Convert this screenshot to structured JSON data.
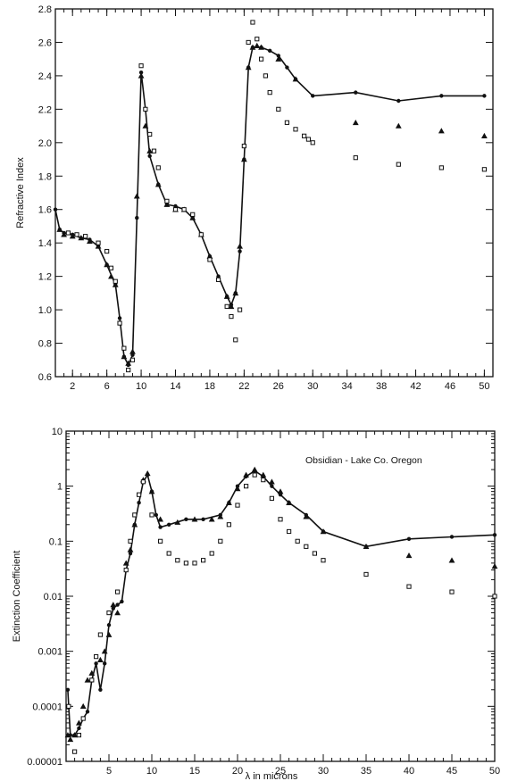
{
  "chart_data": [
    {
      "type": "line",
      "ylabel": "Refractive Index",
      "xlabel": "",
      "x_ticks": [
        2,
        6,
        10,
        14,
        18,
        22,
        26,
        30,
        34,
        38,
        42,
        46,
        50
      ],
      "y_ticks": [
        "0.6",
        "0.8",
        "1.0",
        "1.2",
        "1.4",
        "1.6",
        "1.8",
        "2.0",
        "2.2",
        "2.4",
        "2.6",
        "2.8"
      ],
      "xlim": [
        0,
        51
      ],
      "ylim": [
        0.6,
        2.8
      ],
      "grid": false,
      "series": [
        {
          "marker": "circle",
          "line": true,
          "x": [
            0,
            0.5,
            1,
            2,
            3,
            4,
            5,
            6,
            7,
            7.5,
            8,
            8.5,
            9,
            9.5,
            10,
            10.5,
            11,
            12,
            13,
            14,
            15,
            16,
            17,
            18,
            19,
            20,
            20.5,
            21,
            21.5,
            22,
            22.5,
            23,
            24,
            25,
            26,
            27,
            28,
            30,
            35,
            40,
            45,
            50
          ],
          "y": [
            1.6,
            1.48,
            1.46,
            1.45,
            1.43,
            1.42,
            1.38,
            1.27,
            1.15,
            0.95,
            0.72,
            0.67,
            0.73,
            1.55,
            2.42,
            2.2,
            1.92,
            1.75,
            1.63,
            1.62,
            1.6,
            1.55,
            1.45,
            1.32,
            1.2,
            1.08,
            1.03,
            1.1,
            1.35,
            1.9,
            2.45,
            2.57,
            2.57,
            2.55,
            2.52,
            2.45,
            2.38,
            2.28,
            2.3,
            2.25,
            2.28,
            2.28
          ]
        },
        {
          "marker": "triangle",
          "line": false,
          "x": [
            0.5,
            1,
            2,
            3,
            4,
            5,
            6,
            6.5,
            7,
            8,
            8.5,
            9,
            9.5,
            10,
            10.5,
            11,
            12,
            13,
            14,
            15,
            16,
            17,
            18,
            20,
            20.5,
            21,
            21.5,
            22,
            22.5,
            23,
            23.5,
            24,
            26,
            28,
            35,
            40,
            45,
            50
          ],
          "y": [
            1.48,
            1.45,
            1.44,
            1.43,
            1.41,
            1.38,
            1.27,
            1.2,
            1.15,
            0.72,
            0.68,
            0.75,
            1.68,
            2.4,
            2.1,
            1.95,
            1.75,
            1.63,
            1.6,
            1.6,
            1.55,
            1.45,
            1.32,
            1.08,
            1.02,
            1.1,
            1.38,
            1.9,
            2.45,
            2.57,
            2.58,
            2.57,
            2.5,
            2.38,
            2.12,
            2.1,
            2.07,
            2.04
          ]
        },
        {
          "marker": "square",
          "line": false,
          "x": [
            1.5,
            2.5,
            3.5,
            5,
            6,
            6.5,
            7,
            7.5,
            8,
            8.5,
            9,
            10,
            10.5,
            11,
            11.5,
            12,
            13,
            14,
            15,
            16,
            17,
            18,
            19,
            20,
            20.5,
            21,
            21.5,
            22,
            22.5,
            23,
            23.5,
            24,
            24.5,
            25,
            26,
            27,
            28,
            29,
            29.5,
            30,
            35,
            40,
            45,
            50
          ],
          "y": [
            1.46,
            1.45,
            1.44,
            1.4,
            1.35,
            1.25,
            1.17,
            0.92,
            0.77,
            0.64,
            0.7,
            2.46,
            2.2,
            2.05,
            1.95,
            1.85,
            1.65,
            1.6,
            1.6,
            1.57,
            1.45,
            1.3,
            1.18,
            1.02,
            0.96,
            0.82,
            1.0,
            1.98,
            2.6,
            2.72,
            2.62,
            2.5,
            2.4,
            2.3,
            2.2,
            2.12,
            2.08,
            2.04,
            2.02,
            2.0,
            1.91,
            1.87,
            1.85,
            1.84
          ]
        }
      ]
    },
    {
      "type": "line",
      "ylabel": "Extinction Coefficient",
      "xlabel": "λ in microns",
      "annotation": "Obsidian - Lake Co. Oregon",
      "y_scale": "log",
      "x_ticks": [
        "5",
        "10",
        "15",
        "20",
        "25",
        "30",
        "35",
        "40",
        "45",
        "50"
      ],
      "y_ticks": [
        "0.00001",
        "0.0001",
        "0.001",
        "0.01",
        "0.1",
        "1",
        "10"
      ],
      "xlim": [
        0,
        50
      ],
      "ylim": [
        1e-05,
        10
      ],
      "grid": false,
      "series": [
        {
          "marker": "circle",
          "line": true,
          "x": [
            0.2,
            0.5,
            1,
            1.5,
            2,
            2.5,
            3,
            3.5,
            4,
            4.5,
            5,
            5.5,
            6,
            6.5,
            7,
            7.5,
            8,
            8.5,
            9,
            9.5,
            10,
            10.5,
            11,
            12,
            14,
            16,
            18,
            19,
            20,
            21,
            22,
            23,
            24,
            25,
            26,
            28,
            30,
            35,
            40,
            45,
            50
          ],
          "y": [
            0.0002,
            3e-05,
            3e-05,
            4e-05,
            6e-05,
            8e-05,
            0.0003,
            0.0006,
            0.0002,
            0.0006,
            0.003,
            0.006,
            0.007,
            0.008,
            0.03,
            0.06,
            0.2,
            0.5,
            1.2,
            1.6,
            0.8,
            0.3,
            0.18,
            0.2,
            0.25,
            0.25,
            0.3,
            0.5,
            1.0,
            1.5,
            1.9,
            1.5,
            1.0,
            0.7,
            0.5,
            0.3,
            0.15,
            0.08,
            0.11,
            0.12,
            0.13
          ]
        },
        {
          "marker": "triangle",
          "line": false,
          "x": [
            0.2,
            0.5,
            1,
            1.5,
            2,
            2.5,
            3,
            4,
            4.5,
            5,
            5.5,
            6,
            7,
            7.5,
            8,
            9,
            9.5,
            10,
            11,
            13,
            15,
            17,
            18,
            19,
            20,
            21,
            22,
            23,
            24,
            25,
            26,
            28,
            30,
            35,
            40,
            45,
            50
          ],
          "y": [
            3e-05,
            2.5e-05,
            3e-05,
            5e-05,
            0.0001,
            0.0003,
            0.0004,
            0.0007,
            0.001,
            0.002,
            0.007,
            0.005,
            0.04,
            0.07,
            0.2,
            1.3,
            1.7,
            0.8,
            0.25,
            0.22,
            0.25,
            0.25,
            0.28,
            0.5,
            0.9,
            1.6,
            2.0,
            1.6,
            1.2,
            0.8,
            0.5,
            0.28,
            0.15,
            0.08,
            0.055,
            0.045,
            0.035
          ]
        },
        {
          "marker": "square",
          "line": false,
          "x": [
            0.3,
            1,
            1.5,
            2,
            3,
            3.5,
            4,
            5,
            6,
            7,
            7.5,
            8,
            8.5,
            9,
            10,
            11,
            12,
            13,
            14,
            15,
            16,
            17,
            18,
            19,
            20,
            21,
            22,
            23,
            24,
            25,
            26,
            27,
            28,
            29,
            30,
            35,
            40,
            45,
            50
          ],
          "y": [
            0.0001,
            1.5e-05,
            3e-05,
            6e-05,
            0.0003,
            0.0008,
            0.002,
            0.005,
            0.012,
            0.03,
            0.1,
            0.3,
            0.7,
            1.2,
            0.3,
            0.1,
            0.06,
            0.045,
            0.04,
            0.04,
            0.045,
            0.06,
            0.1,
            0.2,
            0.45,
            1.0,
            1.6,
            1.3,
            0.6,
            0.25,
            0.15,
            0.1,
            0.08,
            0.06,
            0.045,
            0.025,
            0.015,
            0.012,
            0.01
          ]
        }
      ]
    }
  ]
}
